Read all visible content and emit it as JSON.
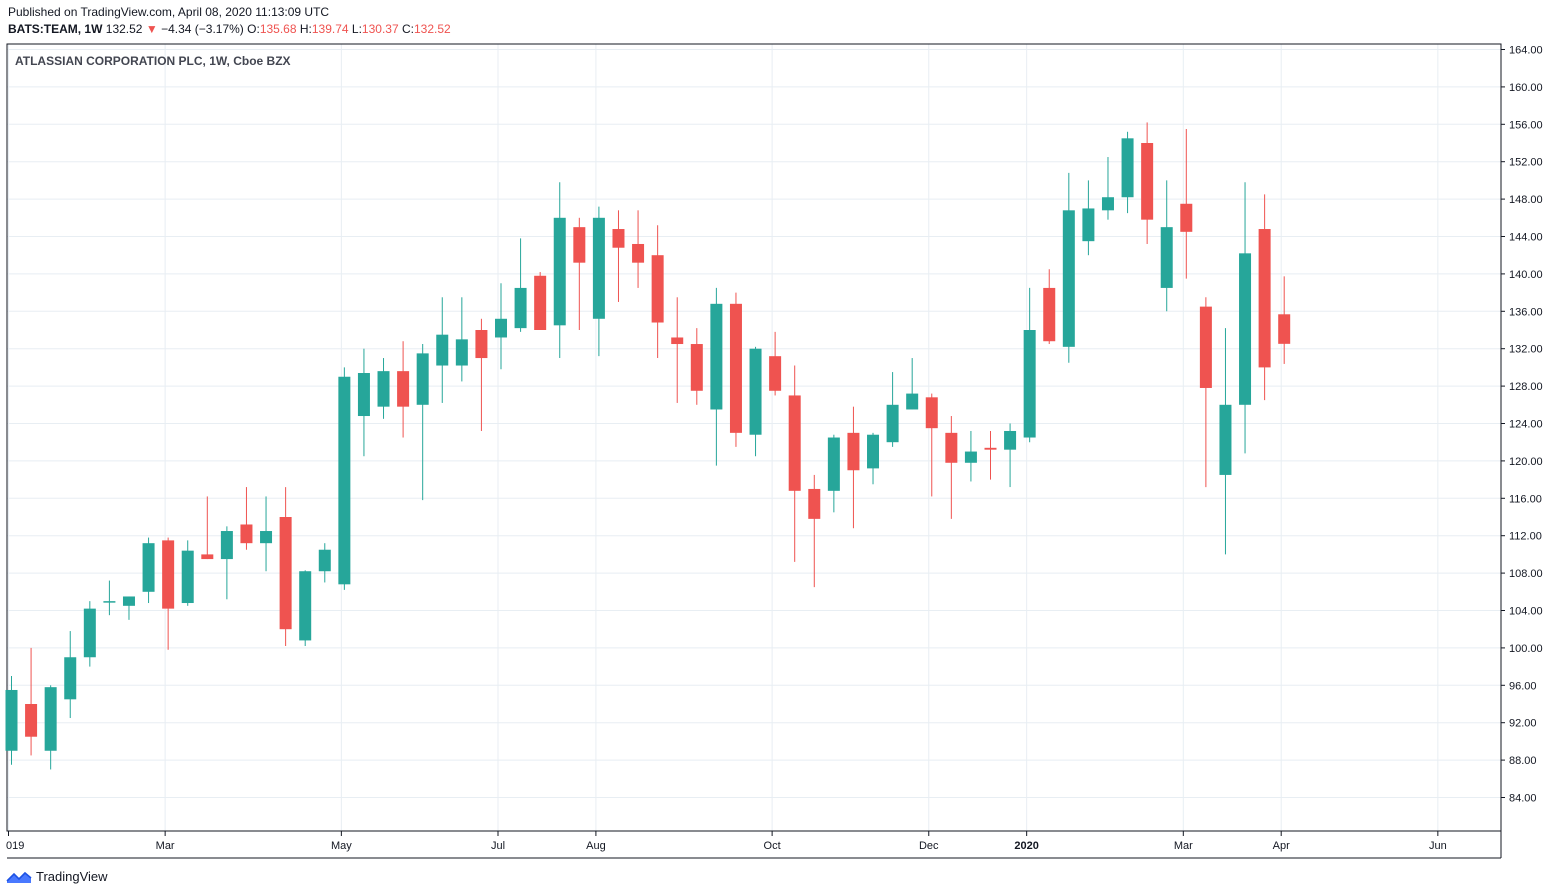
{
  "header": {
    "published": "Published on TradingView.com, April 08, 2020 11:13:09 UTC",
    "symbol": "BATS:TEAM, 1W",
    "last": "132.52",
    "change_arrow": "▼",
    "change": "−4.34 (−3.17%)",
    "o_label": "O:",
    "o_value": "135.68",
    "h_label": "H:",
    "h_value": "139.74",
    "l_label": "L:",
    "l_value": "130.37",
    "c_label": "C:",
    "c_value": "132.52"
  },
  "footer": {
    "brand": "TradingView",
    "logo_icon": "tradingview-logo-icon"
  },
  "colors": {
    "up": "#26a69a",
    "down": "#ef5350",
    "grid": "#e8eef3",
    "axis": "#131722"
  },
  "chart_data": {
    "type": "candlestick",
    "title": "ATLASSIAN CORPORATION PLC, 1W, Cboe BZX",
    "ylim": [
      80,
      166
    ],
    "y_ticks": [
      "164.00",
      "160.00",
      "156.00",
      "152.00",
      "148.00",
      "144.00",
      "140.00",
      "136.00",
      "132.00",
      "128.00",
      "124.00",
      "120.00",
      "116.00",
      "112.00",
      "108.00",
      "104.00",
      "100.00",
      "96.00",
      "92.00",
      "88.00",
      "84.00"
    ],
    "x_ticks": [
      {
        "label": "019",
        "week": 0
      },
      {
        "label": "Mar",
        "week": 8
      },
      {
        "label": "May",
        "week": 17
      },
      {
        "label": "Jul",
        "week": 25
      },
      {
        "label": "Aug",
        "week": 30
      },
      {
        "label": "Oct",
        "week": 39
      },
      {
        "label": "Dec",
        "week": 47
      },
      {
        "label": "2020",
        "week": 52
      },
      {
        "label": "Mar",
        "week": 60
      },
      {
        "label": "Apr",
        "week": 65
      },
      {
        "label": "Jun",
        "week": 73
      }
    ],
    "series": [
      {
        "o": 89,
        "h": 97,
        "l": 87.5,
        "c": 95.5
      },
      {
        "o": 94,
        "h": 100,
        "l": 88.5,
        "c": 90.5
      },
      {
        "o": 89,
        "h": 96,
        "l": 87,
        "c": 95.8
      },
      {
        "o": 94.5,
        "h": 101.8,
        "l": 92.5,
        "c": 99
      },
      {
        "o": 99,
        "h": 105,
        "l": 98,
        "c": 104.2
      },
      {
        "o": 105,
        "h": 107.2,
        "l": 103.5,
        "c": 105
      },
      {
        "o": 104.5,
        "h": 105.5,
        "l": 103,
        "c": 105.5
      },
      {
        "o": 106,
        "h": 111.8,
        "l": 104.8,
        "c": 111.2
      },
      {
        "o": 111.5,
        "h": 111.8,
        "l": 99.8,
        "c": 104.2
      },
      {
        "o": 104.8,
        "h": 111.5,
        "l": 104.5,
        "c": 110.4
      },
      {
        "o": 110,
        "h": 116.2,
        "l": 109.5,
        "c": 109.5
      },
      {
        "o": 109.5,
        "h": 113,
        "l": 105.2,
        "c": 112.5
      },
      {
        "o": 113.2,
        "h": 117.2,
        "l": 110.5,
        "c": 111.2
      },
      {
        "o": 111.2,
        "h": 116.2,
        "l": 108.2,
        "c": 112.5
      },
      {
        "o": 114,
        "h": 117.2,
        "l": 100.2,
        "c": 102
      },
      {
        "o": 100.8,
        "h": 108.3,
        "l": 100.2,
        "c": 108.2
      },
      {
        "o": 108.2,
        "h": 111.2,
        "l": 107,
        "c": 110.5
      },
      {
        "o": 106.8,
        "h": 130,
        "l": 106.2,
        "c": 129
      },
      {
        "o": 124.8,
        "h": 132,
        "l": 120.5,
        "c": 129.4
      },
      {
        "o": 125.8,
        "h": 131,
        "l": 124.5,
        "c": 129.6
      },
      {
        "o": 129.6,
        "h": 132.8,
        "l": 122.5,
        "c": 125.8
      },
      {
        "o": 126,
        "h": 132.5,
        "l": 115.8,
        "c": 131.5
      },
      {
        "o": 130.2,
        "h": 137.5,
        "l": 126.2,
        "c": 133.5
      },
      {
        "o": 130.2,
        "h": 137.5,
        "l": 128.5,
        "c": 133
      },
      {
        "o": 134,
        "h": 135.2,
        "l": 123.2,
        "c": 131
      },
      {
        "o": 133.2,
        "h": 139,
        "l": 129.8,
        "c": 135.2
      },
      {
        "o": 134.2,
        "h": 143.8,
        "l": 133.8,
        "c": 138.5
      },
      {
        "o": 139.8,
        "h": 140.2,
        "l": 134,
        "c": 134
      },
      {
        "o": 134.5,
        "h": 149.8,
        "l": 131,
        "c": 146
      },
      {
        "o": 145,
        "h": 146,
        "l": 134,
        "c": 141.2
      },
      {
        "o": 135.2,
        "h": 147.2,
        "l": 131.2,
        "c": 146
      },
      {
        "o": 144.8,
        "h": 146.8,
        "l": 137,
        "c": 142.8
      },
      {
        "o": 143.2,
        "h": 146.8,
        "l": 138.5,
        "c": 141.2
      },
      {
        "o": 142,
        "h": 145.2,
        "l": 131,
        "c": 134.8
      },
      {
        "o": 133.2,
        "h": 137.5,
        "l": 126.2,
        "c": 132.5
      },
      {
        "o": 132.5,
        "h": 134.2,
        "l": 126,
        "c": 127.5
      },
      {
        "o": 125.5,
        "h": 138.5,
        "l": 119.5,
        "c": 136.8
      },
      {
        "o": 136.8,
        "h": 138,
        "l": 121.5,
        "c": 123
      },
      {
        "o": 122.8,
        "h": 132.2,
        "l": 120.5,
        "c": 132
      },
      {
        "o": 131.2,
        "h": 133.8,
        "l": 127,
        "c": 127.5
      },
      {
        "o": 127,
        "h": 130.2,
        "l": 109.2,
        "c": 116.8
      },
      {
        "o": 117,
        "h": 118.5,
        "l": 106.5,
        "c": 113.8
      },
      {
        "o": 116.8,
        "h": 122.8,
        "l": 114.5,
        "c": 122.5
      },
      {
        "o": 123,
        "h": 125.8,
        "l": 112.8,
        "c": 119
      },
      {
        "o": 119.2,
        "h": 123,
        "l": 117.5,
        "c": 122.8
      },
      {
        "o": 122,
        "h": 129.5,
        "l": 121.5,
        "c": 126
      },
      {
        "o": 125.5,
        "h": 131,
        "l": 125.5,
        "c": 127.2
      },
      {
        "o": 126.8,
        "h": 127.2,
        "l": 116.2,
        "c": 123.5
      },
      {
        "o": 123,
        "h": 124.8,
        "l": 113.8,
        "c": 119.8
      },
      {
        "o": 119.8,
        "h": 123.2,
        "l": 117.8,
        "c": 121
      },
      {
        "o": 121.4,
        "h": 123.2,
        "l": 118,
        "c": 121.2
      },
      {
        "o": 121.2,
        "h": 124,
        "l": 117.2,
        "c": 123.2
      },
      {
        "o": 122.5,
        "h": 138.5,
        "l": 122,
        "c": 134
      },
      {
        "o": 138.5,
        "h": 140.5,
        "l": 132.5,
        "c": 132.8
      },
      {
        "o": 132.2,
        "h": 150.8,
        "l": 130.5,
        "c": 146.8
      },
      {
        "o": 143.5,
        "h": 150,
        "l": 142,
        "c": 147
      },
      {
        "o": 146.8,
        "h": 152.5,
        "l": 145.8,
        "c": 148.2
      },
      {
        "o": 148.2,
        "h": 155.2,
        "l": 146.5,
        "c": 154.5
      },
      {
        "o": 154,
        "h": 156.2,
        "l": 143.2,
        "c": 145.8
      },
      {
        "o": 138.5,
        "h": 150,
        "l": 136,
        "c": 145
      },
      {
        "o": 147.5,
        "h": 155.5,
        "l": 139.5,
        "c": 144.5
      },
      {
        "o": 136.5,
        "h": 137.5,
        "l": 117.2,
        "c": 127.8
      },
      {
        "o": 118.5,
        "h": 134.2,
        "l": 110,
        "c": 126
      },
      {
        "o": 126,
        "h": 149.8,
        "l": 120.8,
        "c": 142.2
      },
      {
        "o": 144.8,
        "h": 148.5,
        "l": 126.5,
        "c": 130
      },
      {
        "o": 135.68,
        "h": 139.74,
        "l": 130.37,
        "c": 132.52
      }
    ]
  }
}
